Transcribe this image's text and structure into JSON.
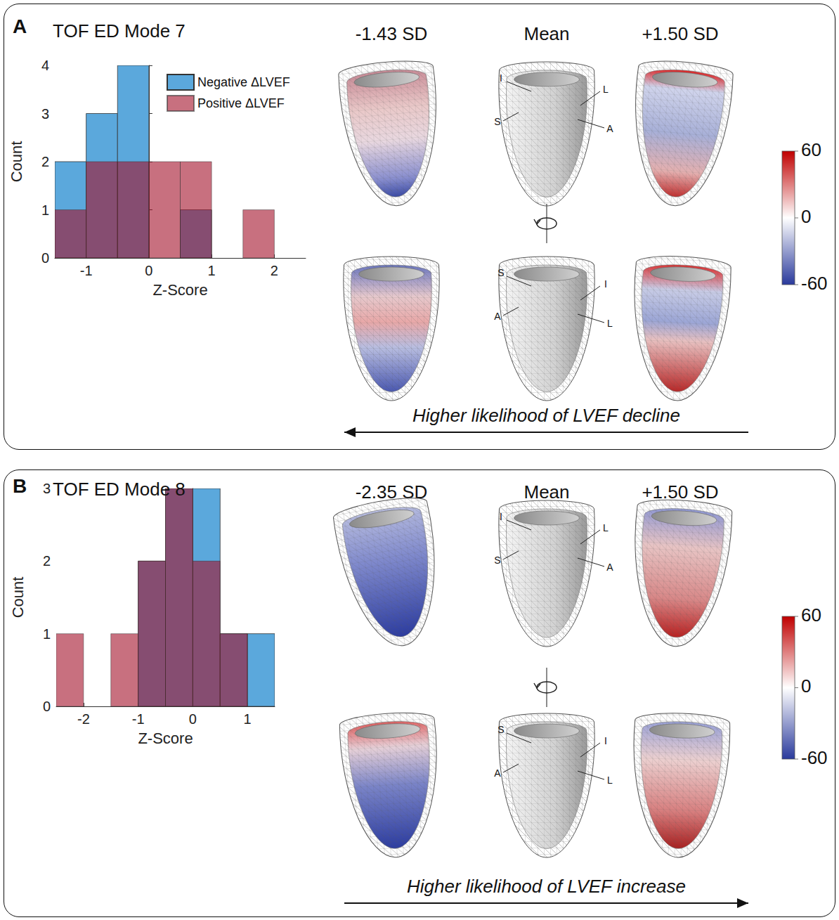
{
  "chart_data": [
    {
      "type": "histogram",
      "label": "A",
      "title": "TOF ED Mode 7",
      "xlabel": "Z-Score",
      "ylabel": "Count",
      "bins": [
        -1.5,
        -1,
        -0.5,
        0,
        0.5,
        1,
        1.5,
        2
      ],
      "series": [
        {
          "name": "Negative ΔLVEF",
          "color": "#5ba8dc",
          "values": [
            2,
            3,
            4,
            0,
            1,
            0,
            0
          ]
        },
        {
          "name": "Positive ΔLVEF",
          "color": "#a3112a",
          "values": [
            1,
            2,
            2,
            2,
            2,
            0,
            1
          ]
        }
      ],
      "xlim": [
        -1.5,
        2.5
      ],
      "xticks": [
        -1,
        0,
        1,
        2
      ],
      "ylim": [
        0,
        4
      ],
      "yticks": [
        0,
        1,
        2,
        3,
        4
      ],
      "legend": "upper right",
      "shape_views": {
        "columns": [
          "-1.43 SD",
          "Mean",
          "+1.50 SD"
        ],
        "orientation_labels": [
          [
            "I",
            "L",
            "S",
            "A"
          ],
          [
            "S",
            "I",
            "A",
            "L"
          ]
        ]
      },
      "colorbar": {
        "range": [
          -60,
          60
        ],
        "ticks": [
          -60,
          0,
          60
        ]
      },
      "arrow": {
        "text": "Higher likelihood of LVEF decline",
        "direction": "left"
      }
    },
    {
      "type": "histogram",
      "label": "B",
      "title": "TOF ED Mode 8",
      "xlabel": "Z-Score",
      "ylabel": "Count",
      "bins": [
        -2.5,
        -2,
        -1.5,
        -1,
        -0.5,
        0,
        0.5,
        1,
        1.5
      ],
      "series": [
        {
          "name": "Negative ΔLVEF",
          "color": "#5ba8dc",
          "values": [
            0,
            0,
            0,
            2,
            3,
            3,
            1,
            1
          ]
        },
        {
          "name": "Positive ΔLVEF",
          "color": "#a3112a",
          "values": [
            1,
            0,
            1,
            2,
            3,
            2,
            1,
            0
          ]
        }
      ],
      "xlim": [
        -2.5,
        1.5
      ],
      "xticks": [
        -2,
        -1,
        0,
        1
      ],
      "ylim": [
        0,
        3
      ],
      "yticks": [
        0,
        1,
        2,
        3
      ],
      "legend": "none",
      "shape_views": {
        "columns": [
          "-2.35 SD",
          "Mean",
          "+1.50 SD"
        ],
        "orientation_labels": [
          [
            "I",
            "L",
            "S",
            "A"
          ],
          [
            "S",
            "I",
            "A",
            "L"
          ]
        ]
      },
      "colorbar": {
        "range": [
          -60,
          60
        ],
        "ticks": [
          -60,
          0,
          60
        ]
      },
      "arrow": {
        "text": "Higher likelihood of LVEF increase",
        "direction": "right"
      }
    }
  ]
}
